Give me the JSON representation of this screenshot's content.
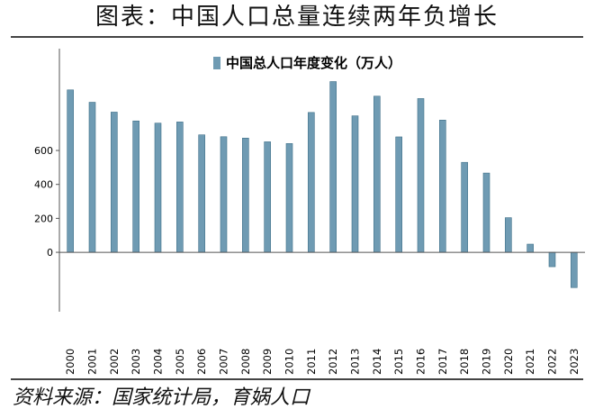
{
  "header": {
    "title": "图表：中国人口总量连续两年负增长"
  },
  "source": "资料来源：国家统计局，育娲人口",
  "colors": {
    "bar": "#6f9bb3",
    "bar_dark": "#3f6f88",
    "axis": "#555555"
  },
  "chart_data": {
    "type": "bar",
    "legend": "中国总人口年度变化（万人）",
    "legend_position": "top",
    "categories": [
      "2000",
      "2001",
      "2002",
      "2003",
      "2004",
      "2005",
      "2006",
      "2007",
      "2008",
      "2009",
      "2010",
      "2011",
      "2012",
      "2013",
      "2014",
      "2015",
      "2016",
      "2017",
      "2018",
      "2019",
      "2020",
      "2021",
      "2022",
      "2023"
    ],
    "values": [
      957,
      884,
      826,
      774,
      761,
      768,
      692,
      681,
      673,
      651,
      641,
      824,
      1006,
      804,
      920,
      680,
      906,
      779,
      530,
      467,
      204,
      48,
      -85,
      -208
    ],
    "yticks": [
      0,
      200,
      400,
      600
    ],
    "ylim": [
      -350,
      1200
    ],
    "grid": false
  }
}
